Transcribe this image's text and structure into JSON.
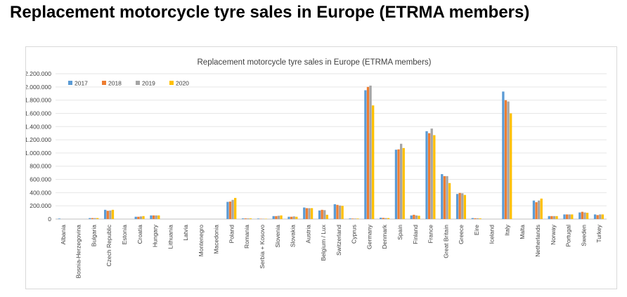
{
  "page": {
    "heading": "Replacement motorcycle tyre sales in Europe (ETRMA members)"
  },
  "chart_data": {
    "type": "bar",
    "title": "Replacement motorcycle tyre sales in Europe (ETRMA members)",
    "xlabel": "",
    "ylabel": "",
    "ylim": [
      0,
      2200000
    ],
    "yticks": [
      0,
      200000,
      400000,
      600000,
      800000,
      1000000,
      1200000,
      1400000,
      1600000,
      1800000,
      2000000,
      2200000
    ],
    "ytick_labels": [
      "0",
      "200.000",
      "400.000",
      "600.000",
      "800.000",
      "1.000.000",
      "1.200.000",
      "1.400.000",
      "1.600.000",
      "1.800.000",
      "2.000.000",
      "2.200.000"
    ],
    "grid": true,
    "legend_position": "top-left",
    "categories": [
      "Albania",
      "Bosnia-Herzegovina",
      "Bulgaria",
      "Czech Republic",
      "Estonia",
      "Croatia",
      "Hungary",
      "Lithuania",
      "Latvia",
      "Montenegro",
      "Macedonia",
      "Poland",
      "Romania",
      "Serbia + Kosovo",
      "Slovenia",
      "Slovakia",
      "Austria",
      "Belgium / Lux",
      "Switzerland",
      "Cyprus",
      "Germany",
      "Denmark",
      "Spain",
      "Finland",
      "France",
      "Great Britain",
      "Greece",
      "Eire",
      "Iceland",
      "Italy",
      "Malta",
      "Netherlands",
      "Norway",
      "Portugal",
      "Sweden",
      "Turkey"
    ],
    "series": [
      {
        "name": "2017",
        "color": "#5b9bd5",
        "values": [
          8000,
          0,
          15000,
          140000,
          0,
          35000,
          55000,
          0,
          0,
          0,
          0,
          260000,
          10000,
          8000,
          45000,
          35000,
          175000,
          130000,
          225000,
          10000,
          1950000,
          20000,
          1050000,
          55000,
          1330000,
          680000,
          380000,
          15000,
          0,
          1930000,
          0,
          280000,
          45000,
          70000,
          100000,
          70000
        ]
      },
      {
        "name": "2018",
        "color": "#ed7d31",
        "values": [
          0,
          0,
          15000,
          125000,
          0,
          35000,
          55000,
          0,
          0,
          0,
          0,
          265000,
          10000,
          5000,
          45000,
          35000,
          165000,
          140000,
          215000,
          8000,
          2000000,
          18000,
          1055000,
          65000,
          1300000,
          650000,
          395000,
          12000,
          0,
          1800000,
          0,
          255000,
          45000,
          70000,
          110000,
          60000
        ]
      },
      {
        "name": "2019",
        "color": "#a5a5a5",
        "values": [
          0,
          0,
          15000,
          130000,
          0,
          40000,
          55000,
          0,
          0,
          0,
          0,
          290000,
          10000,
          5000,
          50000,
          40000,
          165000,
          135000,
          205000,
          8000,
          2020000,
          15000,
          1140000,
          55000,
          1370000,
          650000,
          390000,
          12000,
          0,
          1780000,
          0,
          280000,
          45000,
          70000,
          100000,
          70000
        ]
      },
      {
        "name": "2020",
        "color": "#ffc000",
        "values": [
          0,
          0,
          15000,
          140000,
          0,
          45000,
          55000,
          0,
          0,
          0,
          0,
          320000,
          10000,
          5000,
          55000,
          35000,
          165000,
          65000,
          200000,
          8000,
          1720000,
          15000,
          1075000,
          50000,
          1270000,
          545000,
          365000,
          10000,
          0,
          1600000,
          0,
          310000,
          45000,
          70000,
          95000,
          70000
        ]
      }
    ]
  }
}
